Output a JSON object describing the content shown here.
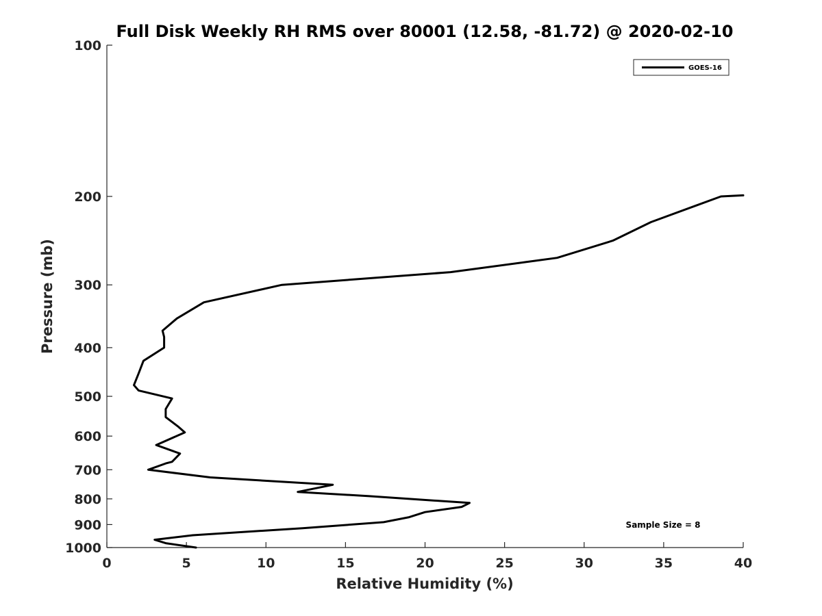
{
  "chart_data": {
    "type": "line",
    "title": "Full Disk Weekly RH RMS over 80001 (12.58, -81.72) @ 2020-02-10",
    "xlabel": "Relative Humidity (%)",
    "ylabel": "Pressure (mb)",
    "xlim": [
      0,
      40
    ],
    "ylim": [
      100,
      1000
    ],
    "y_scale": "log",
    "y_direction": "reversed",
    "grid": false,
    "legend_position": "top-right",
    "x_ticks": [
      "0",
      "5",
      "10",
      "15",
      "20",
      "25",
      "30",
      "35",
      "40"
    ],
    "y_ticks": [
      "100",
      "200",
      "300",
      "400",
      "500",
      "600",
      "700",
      "800",
      "900",
      "1000"
    ],
    "annotation": "Sample Size = 8",
    "series": [
      {
        "name": "GOES-16",
        "color": "#000000",
        "x": [
          40.0,
          38.6,
          34.2,
          31.8,
          28.3,
          21.6,
          11.0,
          6.1,
          4.4,
          3.5,
          3.6,
          3.6,
          2.3,
          2.0,
          1.7,
          2.0,
          4.1,
          3.7,
          3.7,
          4.5,
          4.9,
          3.1,
          4.6,
          4.1,
          3.7,
          2.6,
          6.5,
          14.2,
          12.0,
          16.5,
          22.8,
          22.3,
          20.0,
          19.0,
          17.4,
          12.3,
          5.4,
          3.0,
          3.7,
          5.6
        ],
        "y": [
          199,
          200,
          225,
          245,
          265,
          283,
          300,
          325,
          350,
          370,
          381,
          400,
          425,
          450,
          475,
          487,
          505,
          530,
          550,
          575,
          590,
          625,
          650,
          675,
          680,
          700,
          725,
          750,
          775,
          790,
          815,
          830,
          850,
          870,
          890,
          915,
          945,
          965,
          980,
          1000
        ]
      }
    ]
  }
}
